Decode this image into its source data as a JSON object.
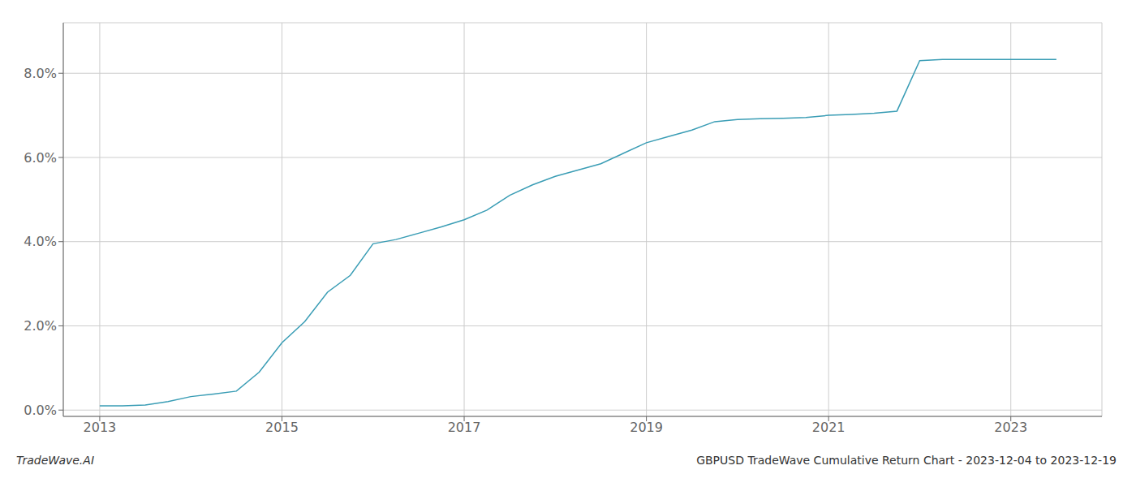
{
  "chart_data": {
    "type": "line",
    "title": "GBPUSD TradeWave Cumulative Return Chart - 2023-12-04 to 2023-12-19",
    "annotations": [
      "TradeWave.AI"
    ],
    "x": [
      2013.0,
      2013.25,
      2013.5,
      2013.75,
      2014.0,
      2014.25,
      2014.5,
      2014.75,
      2015.0,
      2015.25,
      2015.5,
      2015.75,
      2016.0,
      2016.25,
      2016.5,
      2016.75,
      2017.0,
      2017.25,
      2017.5,
      2017.75,
      2018.0,
      2018.25,
      2018.5,
      2018.75,
      2019.0,
      2019.25,
      2019.5,
      2019.75,
      2020.0,
      2020.25,
      2020.5,
      2020.75,
      2021.0,
      2021.25,
      2021.5,
      2021.75,
      2022.0,
      2022.25,
      2022.5,
      2022.75,
      2023.0,
      2023.5
    ],
    "values": [
      0.1,
      0.1,
      0.12,
      0.2,
      0.32,
      0.38,
      0.45,
      0.9,
      1.6,
      2.1,
      2.8,
      3.2,
      3.95,
      4.05,
      4.2,
      4.35,
      4.52,
      4.75,
      5.1,
      5.35,
      5.55,
      5.7,
      5.85,
      6.1,
      6.35,
      6.5,
      6.65,
      6.85,
      6.9,
      6.92,
      6.93,
      6.95,
      7.0,
      7.02,
      7.05,
      7.1,
      8.3,
      8.33,
      8.33,
      8.33,
      8.33,
      8.33
    ],
    "color": "#3a9db5",
    "xlim": [
      2012.6,
      2024.0
    ],
    "ylim": [
      -0.15,
      9.2
    ],
    "xticks": [
      2013,
      2015,
      2017,
      2019,
      2021,
      2023
    ],
    "yticks": [
      {
        "value": 0.0,
        "label": "0.0%"
      },
      {
        "value": 2.0,
        "label": "2.0%"
      },
      {
        "value": 4.0,
        "label": "4.0%"
      },
      {
        "value": 6.0,
        "label": "6.0%"
      },
      {
        "value": 8.0,
        "label": "8.0%"
      }
    ],
    "grid": true
  }
}
